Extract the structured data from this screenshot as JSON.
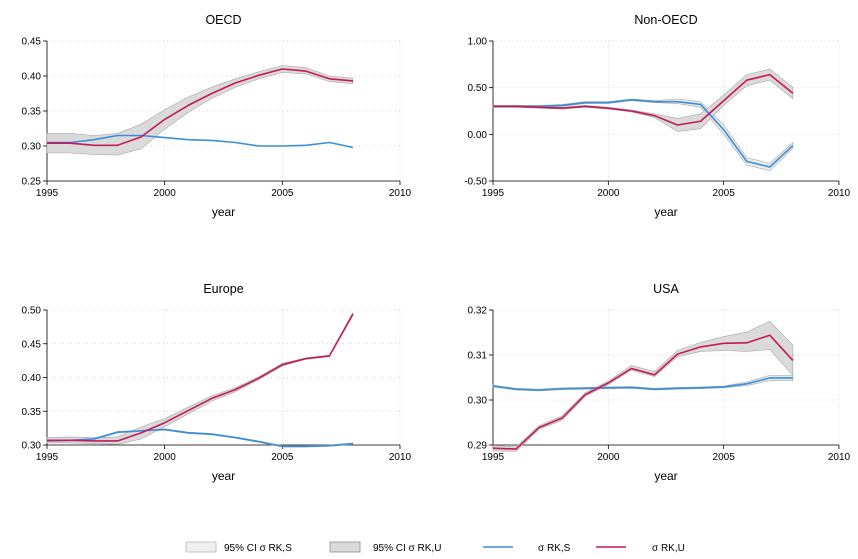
{
  "colors": {
    "rk_s": "#3b8fd9",
    "rk_u": "#c4195a",
    "ci_s_fill": "#eaeaea",
    "ci_u_fill": "#dadada",
    "ci_stroke": "#a8a8a8",
    "grid": "#c8c8c8"
  },
  "legend": {
    "ci_s": "95% CI σ RK,S",
    "ci_u": "95% CI σ RK,U",
    "rk_s": "σ RK,S",
    "rk_u": "σ RK,U"
  },
  "chart_data": [
    {
      "type": "line",
      "title": "OECD",
      "xlabel": "year",
      "ylabel": "",
      "xlim": [
        1995,
        2010
      ],
      "ylim": [
        0.25,
        0.45
      ],
      "xticks": [
        1995,
        2000,
        2005,
        2010
      ],
      "yticks": [
        0.25,
        0.3,
        0.35,
        0.4,
        0.45
      ],
      "ytick_labels": [
        "0.25",
        "0.30",
        "0.35",
        "0.40",
        "0.45"
      ],
      "x": [
        1995,
        1996,
        1997,
        1998,
        1999,
        2000,
        2001,
        2002,
        2003,
        2004,
        2005,
        2006,
        2007,
        2008
      ],
      "series": [
        {
          "key": "rk_s",
          "values": [
            0.305,
            0.305,
            0.309,
            0.315,
            0.315,
            0.312,
            0.309,
            0.308,
            0.305,
            0.3,
            0.3,
            0.301,
            0.305,
            0.298
          ]
        },
        {
          "key": "rk_u",
          "values": [
            0.304,
            0.304,
            0.301,
            0.301,
            0.313,
            0.338,
            0.358,
            0.375,
            0.39,
            0.401,
            0.41,
            0.407,
            0.396,
            0.393
          ],
          "lower": [
            0.29,
            0.29,
            0.288,
            0.287,
            0.296,
            0.324,
            0.348,
            0.368,
            0.384,
            0.396,
            0.405,
            0.403,
            0.392,
            0.389
          ],
          "upper": [
            0.318,
            0.318,
            0.315,
            0.318,
            0.331,
            0.352,
            0.37,
            0.384,
            0.396,
            0.406,
            0.415,
            0.412,
            0.4,
            0.397
          ]
        }
      ]
    },
    {
      "type": "line",
      "title": "Non-OECD",
      "xlabel": "year",
      "ylabel": "",
      "xlim": [
        1995,
        2010
      ],
      "ylim": [
        -0.5,
        1.0
      ],
      "xticks": [
        1995,
        2000,
        2005,
        2010
      ],
      "yticks": [
        -0.5,
        0.0,
        0.5,
        1.0
      ],
      "ytick_labels": [
        "-0.50",
        "0.00",
        "0.50",
        "1.00"
      ],
      "x": [
        1995,
        1996,
        1997,
        1998,
        1999,
        2000,
        2001,
        2002,
        2003,
        2004,
        2005,
        2006,
        2007,
        2008
      ],
      "series": [
        {
          "key": "rk_s",
          "values": [
            0.3,
            0.3,
            0.3,
            0.31,
            0.34,
            0.34,
            0.37,
            0.35,
            0.35,
            0.32,
            0.05,
            -0.29,
            -0.35,
            -0.12
          ],
          "lower": [
            0.29,
            0.29,
            0.29,
            0.3,
            0.33,
            0.33,
            0.36,
            0.34,
            0.33,
            0.29,
            0.0,
            -0.33,
            -0.39,
            -0.15
          ],
          "upper": [
            0.31,
            0.31,
            0.31,
            0.32,
            0.35,
            0.35,
            0.38,
            0.36,
            0.38,
            0.35,
            0.1,
            -0.25,
            -0.31,
            -0.09
          ]
        },
        {
          "key": "rk_u",
          "values": [
            0.3,
            0.3,
            0.29,
            0.28,
            0.3,
            0.28,
            0.25,
            0.2,
            0.1,
            0.14,
            0.36,
            0.58,
            0.64,
            0.44
          ],
          "lower": [
            0.29,
            0.29,
            0.28,
            0.27,
            0.29,
            0.27,
            0.24,
            0.18,
            0.03,
            0.06,
            0.31,
            0.52,
            0.58,
            0.38
          ],
          "upper": [
            0.31,
            0.31,
            0.3,
            0.29,
            0.31,
            0.29,
            0.26,
            0.22,
            0.17,
            0.22,
            0.42,
            0.64,
            0.7,
            0.5
          ]
        }
      ]
    },
    {
      "type": "line",
      "title": "Europe",
      "xlabel": "year",
      "ylabel": "",
      "xlim": [
        1995,
        2010
      ],
      "ylim": [
        0.3,
        0.5
      ],
      "xticks": [
        1995,
        2000,
        2005,
        2010
      ],
      "yticks": [
        0.3,
        0.35,
        0.4,
        0.45,
        0.5
      ],
      "ytick_labels": [
        "0.30",
        "0.35",
        "0.40",
        "0.45",
        "0.50"
      ],
      "x": [
        1995,
        1996,
        1997,
        1998,
        1999,
        2000,
        2001,
        2002,
        2003,
        2004,
        2005,
        2006,
        2007,
        2008
      ],
      "series": [
        {
          "key": "rk_s",
          "values": [
            0.306,
            0.307,
            0.309,
            0.319,
            0.321,
            0.323,
            0.318,
            0.316,
            0.311,
            0.305,
            0.298,
            0.298,
            0.299,
            0.302
          ],
          "lower": [
            0.305,
            0.306,
            0.308,
            0.318,
            0.32,
            0.322,
            0.317,
            0.315,
            0.31,
            0.304,
            0.297,
            0.297,
            0.298,
            0.301
          ],
          "upper": [
            0.307,
            0.308,
            0.31,
            0.32,
            0.322,
            0.324,
            0.319,
            0.317,
            0.312,
            0.306,
            0.299,
            0.299,
            0.3,
            0.303
          ]
        },
        {
          "key": "rk_u",
          "values": [
            0.307,
            0.307,
            0.306,
            0.306,
            0.318,
            0.333,
            0.351,
            0.369,
            0.382,
            0.399,
            0.419,
            0.428,
            0.432,
            0.494
          ],
          "lower": [
            0.303,
            0.303,
            0.302,
            0.301,
            0.309,
            0.327,
            0.346,
            0.365,
            0.379,
            0.397,
            0.417,
            0.427,
            0.431,
            0.492
          ],
          "upper": [
            0.311,
            0.312,
            0.311,
            0.312,
            0.327,
            0.339,
            0.356,
            0.373,
            0.385,
            0.401,
            0.421,
            0.429,
            0.433,
            0.496
          ]
        }
      ]
    },
    {
      "type": "line",
      "title": "USA",
      "xlabel": "year",
      "ylabel": "",
      "xlim": [
        1995,
        2010
      ],
      "ylim": [
        0.29,
        0.32
      ],
      "xticks": [
        1995,
        2000,
        2005,
        2010
      ],
      "yticks": [
        0.29,
        0.3,
        0.31,
        0.32
      ],
      "ytick_labels": [
        "0.29",
        "0.30",
        "0.31",
        "0.32"
      ],
      "x": [
        1995,
        1996,
        1997,
        1998,
        1999,
        2000,
        2001,
        2002,
        2003,
        2004,
        2005,
        2006,
        2007,
        2008
      ],
      "series": [
        {
          "key": "rk_s",
          "values": [
            0.3031,
            0.3024,
            0.3022,
            0.3025,
            0.3026,
            0.3027,
            0.3028,
            0.3024,
            0.3026,
            0.3027,
            0.3029,
            0.3036,
            0.3049,
            0.3049
          ],
          "lower": [
            0.3029,
            0.3022,
            0.302,
            0.3023,
            0.3024,
            0.3025,
            0.3026,
            0.3022,
            0.3024,
            0.3025,
            0.3027,
            0.3032,
            0.3043,
            0.3043
          ],
          "upper": [
            0.3033,
            0.3026,
            0.3024,
            0.3027,
            0.3028,
            0.3029,
            0.303,
            0.3026,
            0.3028,
            0.3029,
            0.3031,
            0.304,
            0.3055,
            0.3055
          ]
        },
        {
          "key": "rk_u",
          "values": [
            0.2893,
            0.2891,
            0.2939,
            0.296,
            0.3012,
            0.3038,
            0.307,
            0.3056,
            0.3102,
            0.3118,
            0.3126,
            0.3127,
            0.3144,
            0.3088
          ],
          "lower": [
            0.2887,
            0.2886,
            0.2935,
            0.2955,
            0.3008,
            0.3034,
            0.3066,
            0.3052,
            0.3096,
            0.3108,
            0.311,
            0.3108,
            0.3112,
            0.3055
          ],
          "upper": [
            0.2899,
            0.2896,
            0.2943,
            0.2965,
            0.3016,
            0.3042,
            0.3077,
            0.3063,
            0.311,
            0.3128,
            0.3141,
            0.3151,
            0.3175,
            0.3122
          ]
        }
      ]
    }
  ]
}
